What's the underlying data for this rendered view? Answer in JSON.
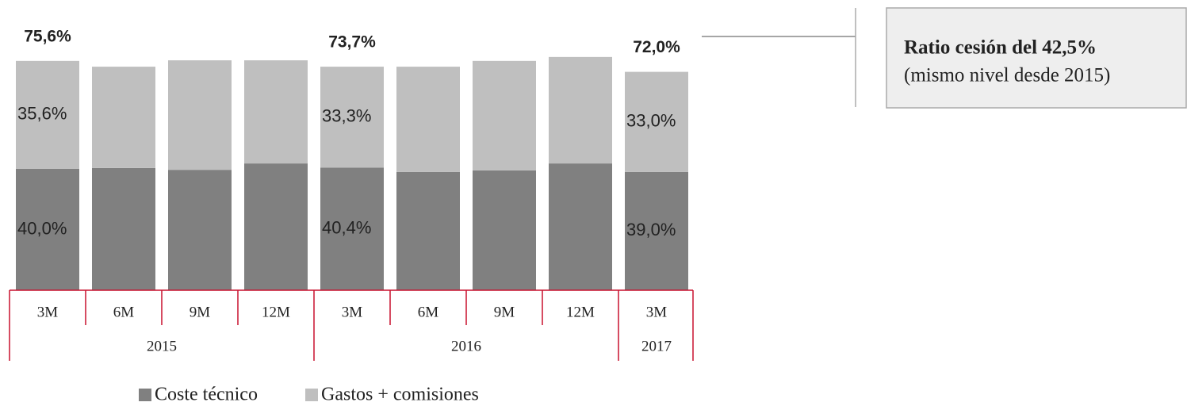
{
  "chart_data": {
    "type": "stacked_bar",
    "categories": [
      "3M",
      "6M",
      "9M",
      "12M",
      "3M",
      "6M",
      "9M",
      "12M",
      "3M"
    ],
    "groups": [
      {
        "name": "2015",
        "start": 0,
        "end": 3
      },
      {
        "name": "2016",
        "start": 4,
        "end": 7
      },
      {
        "name": "2017",
        "start": 8,
        "end": 8
      }
    ],
    "series": [
      {
        "name": "Coste técnico",
        "color": "#808080",
        "values": [
          40.0,
          40.3,
          39.7,
          41.8,
          40.4,
          39.0,
          39.5,
          41.8,
          39.0
        ],
        "value_labels": [
          "40,0%",
          null,
          null,
          null,
          "40,4%",
          null,
          null,
          null,
          "39,0%"
        ]
      },
      {
        "name": "Gastos + comisiones",
        "color": "#bfbfbf",
        "values": [
          35.6,
          33.4,
          36.1,
          34.0,
          33.3,
          34.7,
          36.1,
          35.1,
          33.0
        ],
        "value_labels": [
          "35,6%",
          null,
          null,
          null,
          "33,3%",
          null,
          null,
          null,
          "33,0%"
        ]
      }
    ],
    "totals": [
      75.6,
      null,
      null,
      null,
      73.7,
      null,
      null,
      null,
      72.0
    ],
    "total_labels": [
      "75,6%",
      null,
      null,
      null,
      "73,7%",
      null,
      null,
      null,
      "72,0%"
    ],
    "ylim": [
      0,
      80
    ],
    "annotation": {
      "title": "Ratio cesión del 42,5%",
      "text": "(mismo nivel desde 2015)"
    }
  }
}
